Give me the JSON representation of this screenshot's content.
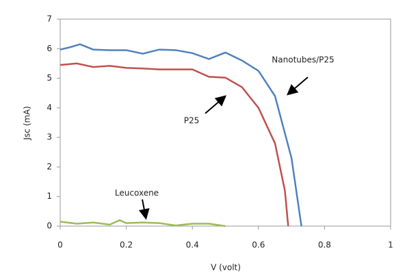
{
  "chart_data": {
    "type": "line",
    "xlabel": "V (volt)",
    "ylabel": "Jsc (mA)",
    "xlim": [
      0,
      1
    ],
    "xticks": [
      0,
      0.2,
      0.4,
      0.6,
      0.8,
      1
    ],
    "ylim": [
      0,
      7
    ],
    "yticks": [
      0,
      1,
      2,
      3,
      4,
      5,
      6,
      7
    ],
    "grid": false,
    "series": [
      {
        "name": "Nanotubes/P25",
        "color": "#4f81bd",
        "x": [
          0,
          0.03,
          0.06,
          0.1,
          0.15,
          0.2,
          0.25,
          0.3,
          0.35,
          0.4,
          0.45,
          0.5,
          0.55,
          0.6,
          0.65,
          0.7,
          0.73
        ],
        "values": [
          5.97,
          6.05,
          6.15,
          5.97,
          5.95,
          5.95,
          5.83,
          5.97,
          5.95,
          5.85,
          5.65,
          5.87,
          5.6,
          5.25,
          4.4,
          2.3,
          0
        ]
      },
      {
        "name": "P25",
        "color": "#c0504d",
        "x": [
          0,
          0.05,
          0.1,
          0.15,
          0.2,
          0.25,
          0.3,
          0.35,
          0.4,
          0.45,
          0.5,
          0.55,
          0.6,
          0.65,
          0.68,
          0.69
        ],
        "values": [
          5.45,
          5.5,
          5.38,
          5.42,
          5.35,
          5.33,
          5.3,
          5.3,
          5.3,
          5.05,
          5.02,
          4.7,
          4.0,
          2.8,
          1.2,
          0
        ]
      },
      {
        "name": "Leucoxene",
        "color": "#9bbb59",
        "x": [
          0,
          0.05,
          0.1,
          0.15,
          0.18,
          0.2,
          0.25,
          0.3,
          0.35,
          0.4,
          0.45,
          0.5
        ],
        "values": [
          0.15,
          0.08,
          0.12,
          0.05,
          0.2,
          0.1,
          0.12,
          0.1,
          0.02,
          0.08,
          0.08,
          0
        ]
      }
    ]
  }
}
